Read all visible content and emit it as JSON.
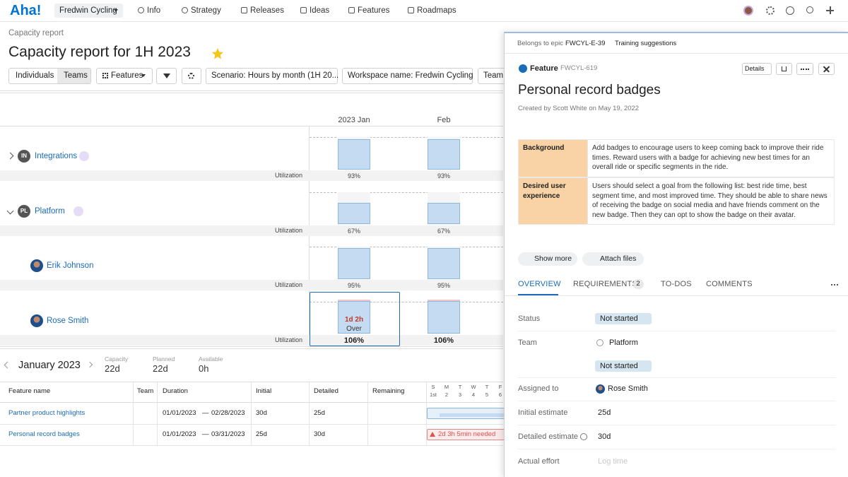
{
  "nav": {
    "logo": "Aha!",
    "workspace": "Fredwin Cycling",
    "items": [
      "Info",
      "Strategy",
      "Releases",
      "Ideas",
      "Features",
      "Roadmaps"
    ]
  },
  "report": {
    "breadcrumb": "Capacity report",
    "title": "Capacity report for 1H 2023",
    "view_tabs": [
      "Individuals",
      "Teams"
    ],
    "features_button": "Features",
    "filters": [
      "Scenario: Hours by month (1H 20...",
      "Workspace name: Fredwin Cycling",
      "Team:"
    ],
    "months": [
      "2023 Jan",
      "Feb"
    ],
    "rows": [
      {
        "initials": "IN",
        "name": "Integrations",
        "metric": "Utilization",
        "utilization": [
          {
            "value": 93,
            "label": "93%"
          },
          {
            "value": 93,
            "label": "93%"
          }
        ]
      },
      {
        "initials": "PL",
        "name": "Platform",
        "metric": "Utilization",
        "utilization": [
          {
            "value": 67,
            "label": "67%"
          },
          {
            "value": 67,
            "label": "67%"
          }
        ]
      },
      {
        "name": "Erik Johnson",
        "metric": "Utilization",
        "utilization": [
          {
            "value": 95,
            "label": "95%"
          },
          {
            "value": 95,
            "label": "95%"
          }
        ]
      },
      {
        "name": "Rose Smith",
        "metric": "Utilization",
        "utilization": [
          {
            "value": 106,
            "label": "106%"
          },
          {
            "value": 106,
            "label": "106%"
          }
        ],
        "over": {
          "amount": "1d 2h",
          "label": "Over"
        }
      }
    ]
  },
  "month_detail": {
    "month": "January 2023",
    "stats": [
      {
        "label": "Capacity",
        "value": "22d"
      },
      {
        "label": "Planned",
        "value": "22d"
      },
      {
        "label": "Available",
        "value": "0h"
      }
    ]
  },
  "feature_table": {
    "columns": [
      "Feature name",
      "Team",
      "Duration",
      "Initial",
      "Detailed",
      "Remaining"
    ],
    "days": [
      {
        "weekday": "S",
        "date": "1st"
      },
      {
        "weekday": "M",
        "date": "2"
      },
      {
        "weekday": "T",
        "date": "3"
      },
      {
        "weekday": "W",
        "date": "4"
      },
      {
        "weekday": "T",
        "date": "5"
      },
      {
        "weekday": "F",
        "date": "6"
      }
    ],
    "separator": "—",
    "rows": [
      {
        "name": "Partner product highlights",
        "start": "01/01/2023",
        "end": "02/28/2023",
        "initial": "30d",
        "detailed": "25d"
      },
      {
        "name": "Personal record badges",
        "start": "01/01/2023",
        "end": "03/31/2023",
        "initial": "25d",
        "detailed": "30d",
        "warning": "2d 3h 5min needed"
      }
    ]
  },
  "detail": {
    "epic_prefix": "Belongs to epic",
    "epic_id": "FWCYL-E-39",
    "epic_name": "Training suggestions",
    "record_type": "Feature",
    "record_id": "FWCYL-619",
    "details_button": "Details",
    "title": "Personal record badges",
    "created": "Created by Scott White on May 19, 2022",
    "custom_fields": [
      {
        "label": "Background",
        "text": "Add badges to encourage users to keep coming back to improve their ride times. Reward users with a badge for achieving new best times for an overall ride or specific segments in the ride."
      },
      {
        "label": "Desired user experience",
        "text": "Users should select a goal from the following list: best ride time, best segment time, and most improved time. They should be able to share news of receiving the badge on social media and have friends comment on the new badge. Then they can opt to show the badge on their avatar."
      }
    ],
    "actions": [
      "Show more",
      "Attach files"
    ],
    "tabs": [
      {
        "label": "OVERVIEW"
      },
      {
        "label": "REQUIREMENTS",
        "count": 2
      },
      {
        "label": "TO-DOS"
      },
      {
        "label": "COMMENTS"
      }
    ],
    "fields": [
      {
        "label": "Status",
        "value": "Not started"
      },
      {
        "label": "Team",
        "value": "Platform",
        "extra": "Not started"
      },
      {
        "label": "Assigned to",
        "value": "Rose Smith"
      },
      {
        "label": "Initial estimate",
        "value": "25d"
      },
      {
        "label": "Detailed estimate",
        "value": "30d"
      },
      {
        "label": "Actual effort",
        "value": "Log time"
      }
    ]
  }
}
